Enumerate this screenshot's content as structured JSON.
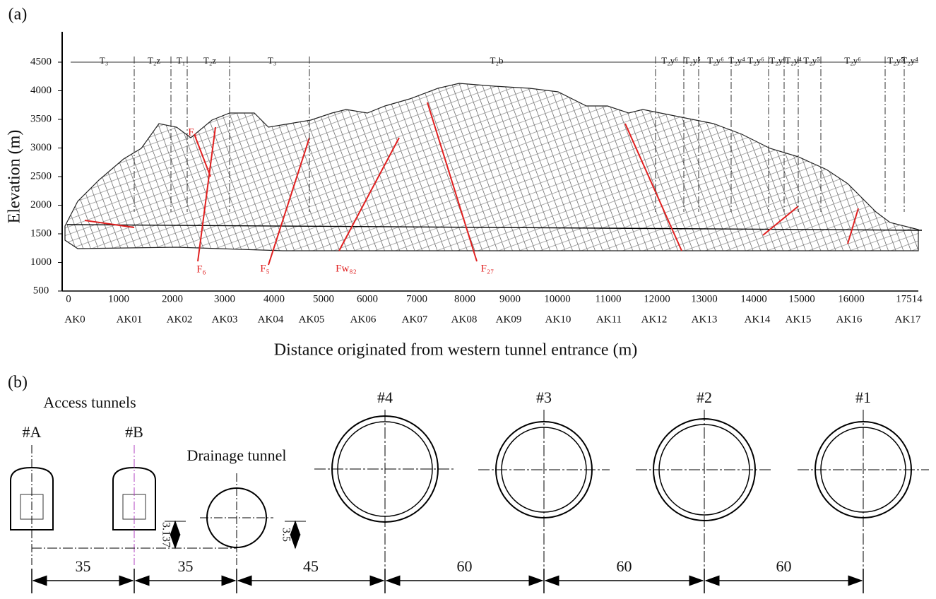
{
  "panel_a": {
    "label": "(a)",
    "y_axis": {
      "title": "Elevation (m)",
      "ticks": [
        500,
        1000,
        1500,
        2000,
        2500,
        3000,
        3500,
        4000,
        4500
      ]
    },
    "x_axis": {
      "title": "Distance originated from western tunnel entrance (m)",
      "ticks": [
        0,
        1000,
        2000,
        3000,
        4000,
        5000,
        6000,
        7000,
        8000,
        9000,
        10000,
        11000,
        12000,
        13000,
        14000,
        15000,
        16000,
        17514
      ],
      "stations": [
        "AK0",
        "AK01",
        "AK02",
        "AK03",
        "AK04",
        "AK05",
        "AK06",
        "AK07",
        "AK08",
        "AK09",
        "AK10",
        "AK11",
        "AK12",
        "AK13",
        "AK14",
        "AK15",
        "AK16",
        "AK17"
      ]
    },
    "strata": [
      "T₃",
      "T₂z",
      "T₁",
      "T₂z",
      "T₃",
      "T₂b",
      "T₂y⁶",
      "T₂y⁵",
      "T₂y⁶",
      "T₂y⁴",
      "T₂y⁶",
      "T₂y⁶",
      "T₂y⁴",
      "T₂y⁵",
      "T₂y⁶",
      "T₂y⁵",
      "T₂y⁴"
    ],
    "faults": [
      "F₁",
      "F₆",
      "F₅",
      "Fw₈₂",
      "F₂₇"
    ]
  },
  "panel_b": {
    "label": "(b)",
    "access_title": "Access tunnels",
    "access": [
      "#A",
      "#B"
    ],
    "drainage_title": "Drainage tunnel",
    "main": [
      "#4",
      "#3",
      "#2",
      "#1"
    ],
    "heights": [
      "3.137",
      "3.5"
    ],
    "spacings": [
      35,
      35,
      45,
      60,
      60,
      60
    ]
  }
}
